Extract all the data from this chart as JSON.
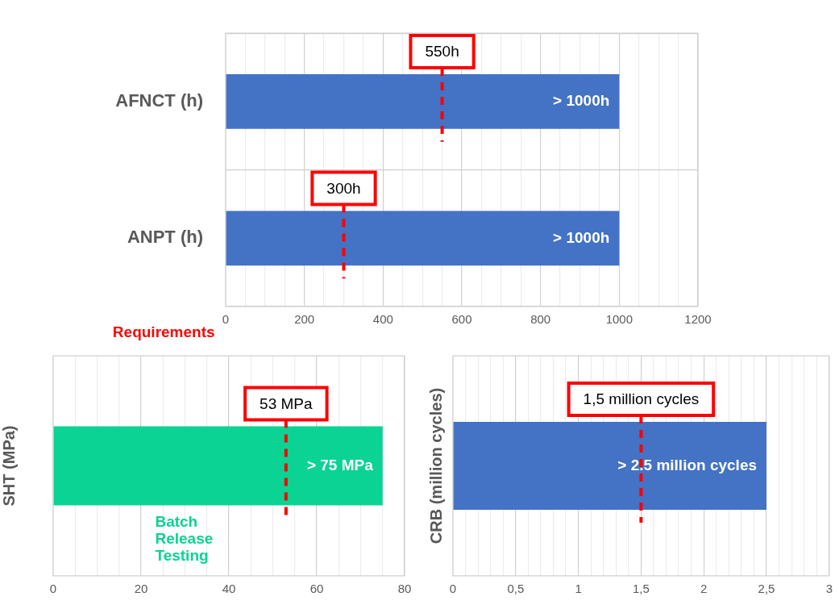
{
  "chart_data": [
    {
      "type": "bar",
      "orientation": "horizontal",
      "categories": [
        "AFNCT (h)",
        "ANPT (h)"
      ],
      "values": [
        1000,
        1000
      ],
      "color": "#4472c4",
      "value_labels": [
        "> 1000h",
        "> 1000h"
      ],
      "xlim": [
        0,
        1200
      ],
      "xticks": [
        0,
        {
          "value": 50,
          "label": null
        },
        {
          "value": 100,
          "label": null
        },
        {
          "value": 150,
          "label": null
        },
        200,
        {
          "value": 250,
          "label": null
        },
        {
          "value": 300,
          "label": null
        },
        {
          "value": 350,
          "label": null
        },
        400,
        {
          "value": 450,
          "label": null
        },
        {
          "value": 500,
          "label": null
        },
        {
          "value": 550,
          "label": null
        },
        600,
        {
          "value": 650,
          "label": null
        },
        {
          "value": 700,
          "label": null
        },
        {
          "value": 750,
          "label": null
        },
        800,
        {
          "value": 850,
          "label": null
        },
        {
          "value": 900,
          "label": null
        },
        {
          "value": 950,
          "label": null
        },
        1000,
        {
          "value": 1050,
          "label": null
        },
        {
          "value": 1100,
          "label": null
        },
        {
          "value": 1150,
          "label": null
        },
        1200
      ],
      "grid": true,
      "legend": false,
      "ref_lines": [
        {
          "axis": "x",
          "value": 550,
          "label": "550h",
          "color": "#ff0000",
          "line_style": "dashed"
        },
        {
          "axis": "x",
          "value": 300,
          "label": "300h",
          "color": "#ff0000",
          "line_style": "dashed"
        }
      ]
    },
    {
      "type": "bar",
      "orientation": "horizontal",
      "categories": [
        null
      ],
      "ylabel": "SHT (MPa)",
      "values": [
        75
      ],
      "color": "#0ad394",
      "value_labels": [
        "> 75 MPa"
      ],
      "xlim": [
        0,
        80
      ],
      "xticks": [
        0,
        {
          "value": 5,
          "label": null
        },
        {
          "value": 10,
          "label": null
        },
        {
          "value": 15,
          "label": null
        },
        20,
        {
          "value": 25,
          "label": null
        },
        {
          "value": 30,
          "label": null
        },
        {
          "value": 35,
          "label": null
        },
        40,
        {
          "value": 45,
          "label": null
        },
        {
          "value": 50,
          "label": null
        },
        {
          "value": 55,
          "label": null
        },
        60,
        {
          "value": 65,
          "label": null
        },
        {
          "value": 70,
          "label": null
        },
        {
          "value": 75,
          "label": null
        },
        80
      ],
      "grid": "x",
      "legend": false,
      "ref_lines": [
        {
          "axis": "x",
          "value": 53,
          "label": "53 MPa",
          "color": "#ff0000",
          "line_style": "dashed"
        }
      ],
      "annotations": [
        "Requirements",
        "Batch Release Testing"
      ]
    },
    {
      "type": "bar",
      "orientation": "horizontal",
      "categories": [
        null
      ],
      "ylabel": "CRB (million cycles)",
      "values": [
        2.5
      ],
      "color": "#4472c4",
      "value_labels": [
        "> 2.5 million cycles"
      ],
      "xlim": [
        0,
        3
      ],
      "xticks": [
        0,
        {
          "value": 0.1,
          "label": null
        },
        {
          "value": 0.2,
          "label": null
        },
        {
          "value": 0.3,
          "label": null
        },
        {
          "value": 0.4,
          "label": null
        },
        {
          "value": 0.5,
          "label": "0,5"
        },
        {
          "value": 0.6,
          "label": null
        },
        {
          "value": 0.7,
          "label": null
        },
        {
          "value": 0.8,
          "label": null
        },
        {
          "value": 0.9,
          "label": null
        },
        1,
        {
          "value": 1.1,
          "label": null
        },
        {
          "value": 1.2,
          "label": null
        },
        {
          "value": 1.3,
          "label": null
        },
        {
          "value": 1.4,
          "label": null
        },
        {
          "value": 1.5,
          "label": "1,5"
        },
        {
          "value": 1.6,
          "label": null
        },
        {
          "value": 1.7,
          "label": null
        },
        {
          "value": 1.8,
          "label": null
        },
        {
          "value": 1.9,
          "label": null
        },
        2,
        {
          "value": 2.1,
          "label": null
        },
        {
          "value": 2.2,
          "label": null
        },
        {
          "value": 2.3,
          "label": null
        },
        {
          "value": 2.4,
          "label": null
        },
        {
          "value": 2.5,
          "label": "2,5"
        },
        {
          "value": 2.6,
          "label": null
        },
        {
          "value": 2.7,
          "label": null
        },
        {
          "value": 2.8,
          "label": null
        },
        {
          "value": 2.9,
          "label": null
        },
        3
      ],
      "grid": "x",
      "legend": false,
      "ref_lines": [
        {
          "axis": "x",
          "value": 1.5,
          "label": "1,5 million cycles",
          "color": "#ff0000",
          "line_style": "dashed"
        }
      ]
    }
  ]
}
